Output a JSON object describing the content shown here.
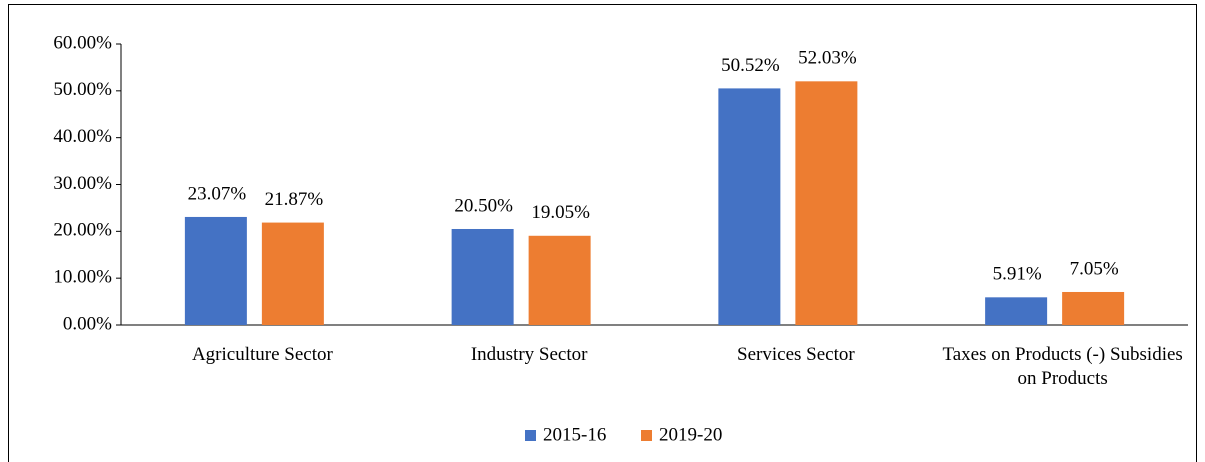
{
  "chart_data": {
    "type": "bar",
    "categories": [
      "Agriculture Sector",
      "Industry Sector",
      "Services Sector",
      "Taxes on Products (-) Subsidies on Products"
    ],
    "series": [
      {
        "name": "2015-16",
        "color": "#4472c4",
        "values": [
          23.07,
          20.5,
          50.52,
          5.91
        ],
        "value_labels": [
          "23.07%",
          "20.50%",
          "50.52%",
          "5.91%"
        ]
      },
      {
        "name": "2019-20",
        "color": "#ed7d31",
        "values": [
          21.87,
          19.05,
          52.03,
          7.05
        ],
        "value_labels": [
          "21.87%",
          "19.05%",
          "52.03%",
          "7.05%"
        ]
      }
    ],
    "ylim": [
      0,
      60
    ],
    "yticks": [
      {
        "value": 0,
        "label": "0.00%"
      },
      {
        "value": 10,
        "label": "10.00%"
      },
      {
        "value": 20,
        "label": "20.00%"
      },
      {
        "value": 30,
        "label": "30.00%"
      },
      {
        "value": 40,
        "label": "40.00%"
      },
      {
        "value": 50,
        "label": "50.00%"
      },
      {
        "value": 60,
        "label": "60.00%"
      }
    ],
    "grid": false,
    "legend": "bottom"
  }
}
